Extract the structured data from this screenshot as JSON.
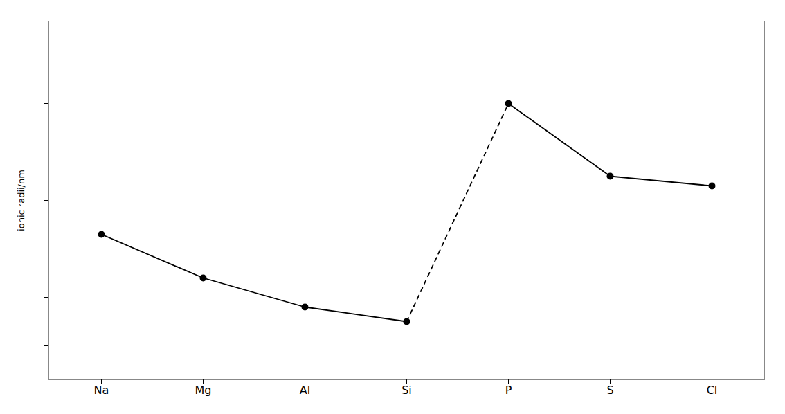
{
  "chart_data": {
    "type": "line",
    "ylabel": "ionic radii/nm",
    "categories": [
      "Na",
      "Mg",
      "Al",
      "Si",
      "P",
      "S",
      "Cl"
    ],
    "series": [
      {
        "color": "#000000",
        "marker": "circle",
        "line_style": "solid",
        "values": [
          0.58,
          0.49,
          0.43,
          0.4,
          null,
          null,
          null
        ]
      },
      {
        "color": "#000000",
        "marker": "circle",
        "line_style": "solid",
        "values": [
          null,
          null,
          null,
          null,
          0.85,
          0.7,
          0.68
        ]
      },
      {
        "color": "#000000",
        "marker": "none",
        "line_style": "dashed",
        "values": [
          null,
          null,
          null,
          0.4,
          0.85,
          null,
          null
        ]
      }
    ],
    "ylim": [
      0.28,
      1.02
    ],
    "yticks": [
      0.35,
      0.45,
      0.55,
      0.65,
      0.75,
      0.85,
      0.95
    ],
    "grid": false,
    "tick_labels": "x"
  }
}
